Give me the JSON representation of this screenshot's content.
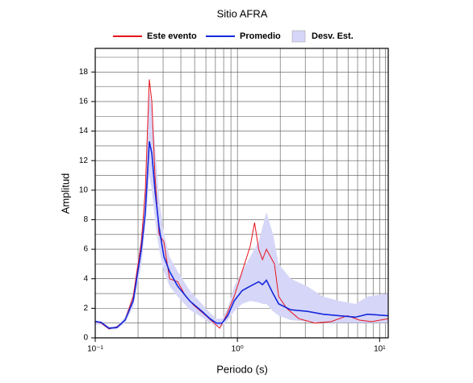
{
  "chart_data": {
    "type": "line",
    "title": "Sitio AFRA",
    "xlabel": "Periodo (s)",
    "ylabel": "Amplitud",
    "xscale": "log",
    "xlim": [
      0.1,
      11.5
    ],
    "ylim": [
      0,
      19.6
    ],
    "xticks": [
      {
        "value": 0.1,
        "label": "10⁻¹"
      },
      {
        "value": 1,
        "label": "10⁰"
      },
      {
        "value": 10,
        "label": "10¹"
      }
    ],
    "xminorticks": [
      0.2,
      0.3,
      0.4,
      0.5,
      0.6,
      0.7,
      0.8,
      0.9,
      2,
      3,
      4,
      5,
      6,
      7,
      8,
      9,
      11
    ],
    "yticks": [
      0,
      2,
      4,
      6,
      8,
      10,
      12,
      14,
      16,
      18
    ],
    "yminorticks": [
      1,
      3,
      5,
      7,
      9,
      11,
      13,
      15,
      17,
      19
    ],
    "grid": true,
    "series": [
      {
        "name": "Este evento",
        "color": "#e8141c",
        "x": [
          0.1,
          0.11,
          0.125,
          0.142,
          0.162,
          0.185,
          0.211,
          0.225,
          0.24,
          0.25,
          0.263,
          0.281,
          0.304,
          0.333,
          0.38,
          0.433,
          0.494,
          0.6,
          0.684,
          0.75,
          0.833,
          0.949,
          1.08,
          1.23,
          1.32,
          1.41,
          1.5,
          1.6,
          1.82,
          1.95,
          2.22,
          2.7,
          3.51,
          4.56,
          5.93,
          7.21,
          8.78,
          11.5
        ],
        "values": [
          1.1,
          1.0,
          0.6,
          0.75,
          1.2,
          2.8,
          6.5,
          10,
          17.5,
          16,
          11,
          7,
          6.5,
          4,
          3.8,
          2.8,
          2.2,
          1.5,
          1.0,
          0.65,
          1.5,
          2.8,
          4.5,
          6.2,
          7.8,
          6,
          5.3,
          6,
          5,
          2.8,
          2,
          1.3,
          1.0,
          1.1,
          1.5,
          1.2,
          1.1,
          1.3
        ]
      },
      {
        "name": "Promedio",
        "color": "#1428dc",
        "x": [
          0.1,
          0.11,
          0.125,
          0.142,
          0.162,
          0.185,
          0.211,
          0.225,
          0.24,
          0.25,
          0.263,
          0.281,
          0.304,
          0.333,
          0.38,
          0.462,
          0.562,
          0.641,
          0.711,
          0.78,
          0.855,
          0.949,
          1.08,
          1.23,
          1.41,
          1.5,
          1.6,
          1.78,
          1.95,
          2.37,
          3.08,
          4.0,
          5.2,
          6.76,
          8.22,
          11.5
        ],
        "values": [
          1.1,
          1.05,
          0.65,
          0.7,
          1.2,
          2.5,
          6,
          8.5,
          13.3,
          12.5,
          10,
          7.5,
          5.5,
          4.5,
          3.5,
          2.5,
          1.8,
          1.3,
          1.0,
          1.0,
          1.5,
          2.5,
          3.2,
          3.5,
          3.8,
          3.6,
          3.9,
          3.0,
          2.3,
          1.9,
          1.8,
          1.6,
          1.5,
          1.4,
          1.6,
          1.5
        ]
      },
      {
        "name": "Desv. Est.",
        "color": "#d6d6f8",
        "x": [
          0.1,
          0.11,
          0.125,
          0.142,
          0.162,
          0.185,
          0.211,
          0.225,
          0.24,
          0.25,
          0.263,
          0.281,
          0.304,
          0.333,
          0.38,
          0.462,
          0.562,
          0.641,
          0.711,
          0.78,
          0.855,
          0.949,
          1.08,
          1.23,
          1.41,
          1.5,
          1.6,
          1.78,
          1.95,
          2.37,
          3.08,
          4.0,
          5.2,
          6.76,
          8.22,
          11.5
        ],
        "lower": [
          0.9,
          0.9,
          0.55,
          0.6,
          1.0,
          2.1,
          5,
          7.5,
          11,
          10,
          8,
          6,
          4.5,
          3.5,
          2.8,
          1.9,
          1.4,
          1.0,
          0.8,
          0.8,
          1.2,
          1.8,
          2.3,
          2.5,
          2.4,
          2.3,
          2.3,
          1.8,
          1.5,
          1.2,
          1.1,
          1.0,
          1.0,
          1.0,
          1.0,
          1.0
        ],
        "upper": [
          1.2,
          1.1,
          0.75,
          0.8,
          1.4,
          3.0,
          7,
          10,
          16.8,
          15.5,
          13,
          9.5,
          7,
          5.5,
          4.5,
          3.2,
          2.3,
          1.7,
          1.3,
          1.3,
          2.0,
          3.5,
          4.5,
          5.5,
          6.5,
          7.5,
          8.5,
          7,
          5,
          4,
          3.5,
          2.8,
          2.5,
          2.3,
          2.8,
          3.0
        ]
      }
    ]
  }
}
